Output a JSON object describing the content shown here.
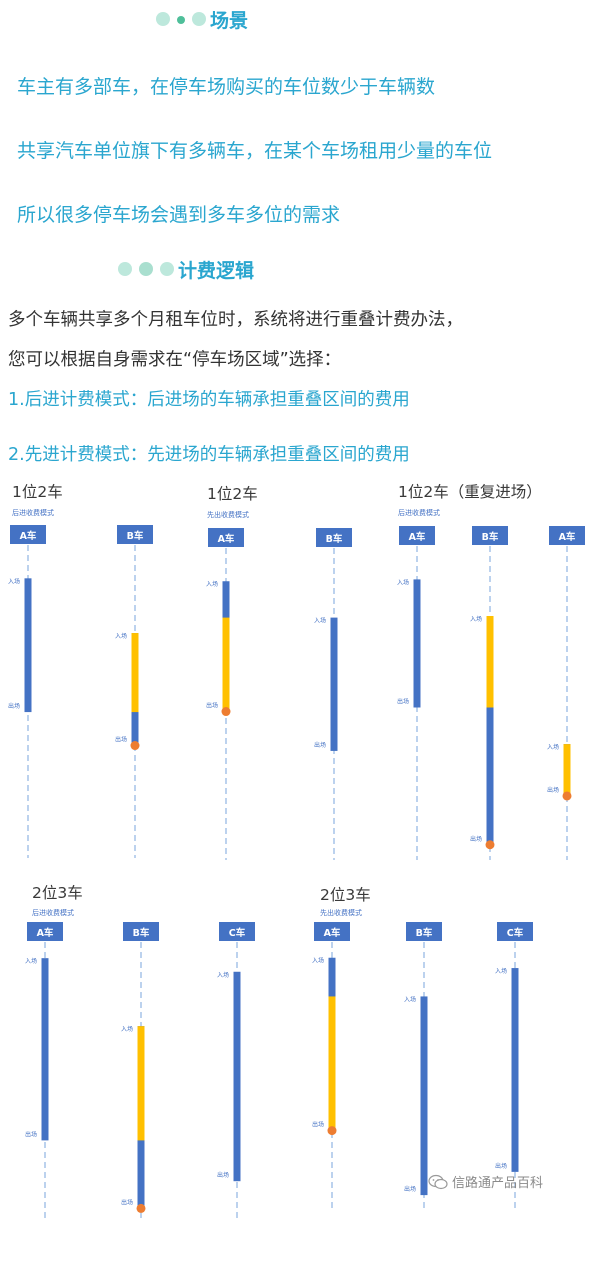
{
  "scenario": {
    "title": "场景",
    "lines": [
      "车主有多部车，在停车场购买的车位数少于车辆数",
      "共享汽车单位旗下有多辆车，在某个车场租用少量的车位",
      "所以很多停车场会遇到多车多位的需求"
    ]
  },
  "billing": {
    "title": "计费逻辑",
    "intro": [
      "多个车辆共享多个月租车位时，系统将进行重叠计费办法，",
      "您可以根据自身需求在“停车场区域”选择："
    ],
    "modes": [
      "1.后进计费模式：后进场的车辆承担重叠区间的费用",
      "2.先进计费模式：先进场的车辆承担重叠区间的费用"
    ]
  },
  "colors": {
    "accent": "#2aa6cf",
    "bar_blue": "#4472c4",
    "bar_yellow": "#ffc000",
    "dot_orange": "#ed7d31",
    "dash": "#8fb4e3"
  },
  "legend": {
    "enter": "入场",
    "exit": "出场"
  },
  "diagrams": [
    {
      "title": "1位2车",
      "subtitle": "后进收费模式",
      "cars": [
        {
          "label": "A车",
          "enter": 0.08,
          "exit": 0.52,
          "yellow": null,
          "end_dot": false,
          "show_enter": true,
          "show_exit": true
        },
        {
          "label": "B车",
          "enter": 0.26,
          "exit": 0.63,
          "yellow": [
            0.26,
            0.52
          ],
          "end_dot": true,
          "show_enter": true,
          "show_exit": true
        }
      ]
    },
    {
      "title": "1位2车",
      "subtitle": "先出收费模式",
      "cars": [
        {
          "label": "A车",
          "enter": 0.08,
          "exit": 0.51,
          "yellow": [
            0.2,
            0.51
          ],
          "end_dot": true,
          "show_enter": true,
          "show_exit": true
        },
        {
          "label": "B车",
          "enter": 0.2,
          "exit": 0.64,
          "yellow": null,
          "end_dot": false,
          "show_enter": true,
          "show_exit": true
        }
      ]
    },
    {
      "title": "1位2车（重复进场）",
      "subtitle": "后进收费模式",
      "cars": [
        {
          "label": "A车",
          "enter": 0.08,
          "exit": 0.5,
          "yellow": null,
          "end_dot": false,
          "show_enter": true,
          "show_exit": true
        },
        {
          "label": "B车",
          "enter": 0.2,
          "exit": 0.95,
          "yellow": [
            0.2,
            0.5
          ],
          "end_dot": true,
          "show_enter": true,
          "show_exit": true
        },
        {
          "label": "A车",
          "enter": 0.62,
          "exit": 0.79,
          "yellow": [
            0.62,
            0.79
          ],
          "end_dot": true,
          "show_enter": true,
          "show_exit": true
        }
      ]
    },
    {
      "title": "2位3车",
      "subtitle": "后进收费模式",
      "cars": [
        {
          "label": "A车",
          "enter": 0.03,
          "exit": 0.7,
          "yellow": null,
          "end_dot": false,
          "show_enter": true,
          "show_exit": true
        },
        {
          "label": "B车",
          "enter": 0.28,
          "exit": 0.95,
          "yellow": [
            0.28,
            0.7
          ],
          "end_dot": true,
          "show_enter": true,
          "show_exit": true
        },
        {
          "label": "C车",
          "enter": 0.08,
          "exit": 0.85,
          "yellow": null,
          "end_dot": false,
          "show_enter": true,
          "show_exit": true
        }
      ]
    },
    {
      "title": "2位3车",
      "subtitle": "先出收费模式",
      "cars": [
        {
          "label": "A车",
          "enter": 0.03,
          "exit": 0.7,
          "yellow": [
            0.18,
            0.7
          ],
          "end_dot": true,
          "show_enter": true,
          "show_exit": true
        },
        {
          "label": "B车",
          "enter": 0.18,
          "exit": 0.95,
          "yellow": null,
          "end_dot": false,
          "show_enter": true,
          "show_exit": true
        },
        {
          "label": "C车",
          "enter": 0.07,
          "exit": 0.86,
          "yellow": null,
          "end_dot": false,
          "show_enter": true,
          "show_exit": true
        }
      ]
    }
  ],
  "watermark": {
    "icon": "wechat-icon",
    "text": "信路通产品百科"
  }
}
